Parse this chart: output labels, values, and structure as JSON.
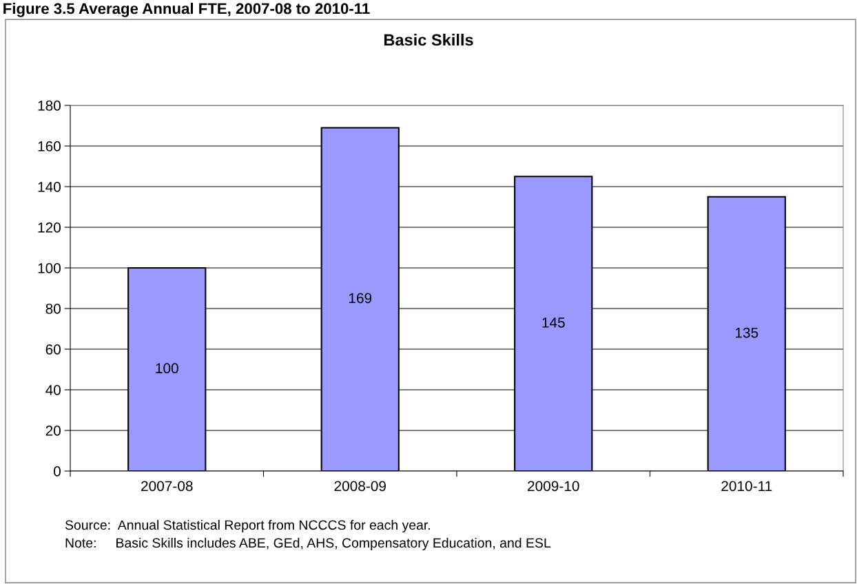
{
  "chart_data": {
    "type": "bar",
    "title": "Basic Skills",
    "categories": [
      "2007-08",
      "2008-09",
      "2009-10",
      "2010-11"
    ],
    "values": [
      100,
      169,
      145,
      135
    ],
    "color": "#9999ff",
    "ylim": [
      0,
      180
    ],
    "yticks": [
      0,
      20,
      40,
      60,
      80,
      100,
      120,
      140,
      160,
      180
    ],
    "grid": "y",
    "data_labels": true,
    "legend": false,
    "annotations": [
      "Figure 3.5 Average Annual FTE, 2007-08 to 2010-11",
      "Source:  Annual Statistical Report from NCCCS for each year.",
      "Note:     Basic Skills includes ABE, GEd, AHS, Compensatory Education, and ESL"
    ]
  }
}
